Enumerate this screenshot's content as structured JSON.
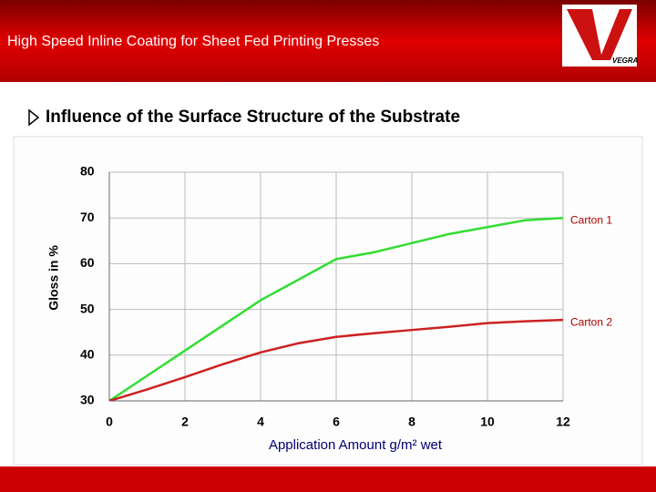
{
  "header": {
    "title": "High Speed Inline Coating for Sheet Fed Printing Presses",
    "logo": "VEGRA"
  },
  "heading": "Influence of the Surface Structure of the Substrate",
  "chart_data": {
    "type": "line",
    "x": [
      0,
      1,
      2,
      3,
      4,
      5,
      6,
      7,
      8,
      9,
      10,
      11,
      12
    ],
    "series": [
      {
        "name": "Carton 1",
        "color": "#33dd33",
        "values": [
          30,
          35.5,
          41,
          46.5,
          52,
          56.5,
          61,
          62.5,
          64.5,
          66.5,
          68,
          69.5,
          70
        ]
      },
      {
        "name": "Carton 2",
        "color": "#cc2222",
        "values": [
          30,
          32.5,
          35.2,
          38,
          40.6,
          42.6,
          44,
          44.8,
          45.5,
          46.2,
          47,
          47.4,
          47.7
        ]
      }
    ],
    "xlabel": "Application Amount g/m² wet",
    "ylabel": "Gloss in %",
    "xlim": [
      0,
      12
    ],
    "xticks": [
      0,
      2,
      4,
      6,
      8,
      10,
      12
    ],
    "ylim": [
      30,
      80
    ],
    "yticks": [
      30,
      40,
      50,
      60,
      70,
      80
    ],
    "grid": true
  }
}
